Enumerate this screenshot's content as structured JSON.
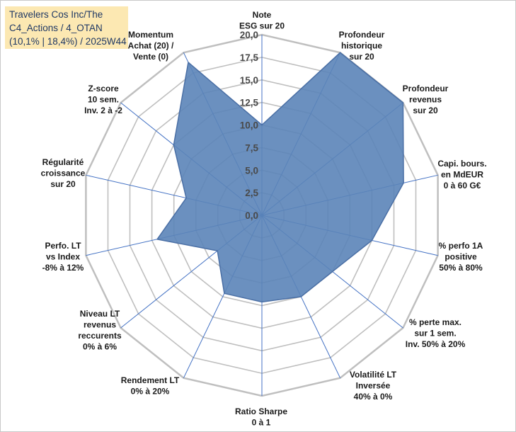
{
  "title": {
    "line1": "Travelers Cos Inc/The",
    "line2": "C4_Actions / 4_OTAN",
    "line3": "(10,1% | 18,4%) / 2025W44"
  },
  "colors": {
    "fill": "#5b84b8",
    "stroke": "#4a6fa5",
    "spoke": "#4472c4",
    "grid": "#bfbfbf"
  },
  "chart_data": {
    "type": "radar",
    "rmin": 0,
    "rmax": 20,
    "tick_labels": [
      "0,0",
      "2,5",
      "5,0",
      "7,5",
      "10,0",
      "12,5",
      "15,0",
      "17,5",
      "20,0"
    ],
    "axes": [
      {
        "label": [
          "Note",
          "ESG sur 20"
        ],
        "value": 10.0
      },
      {
        "label": [
          "Profondeur",
          "historique",
          "sur 20"
        ],
        "value": 20.0
      },
      {
        "label": [
          "Profondeur",
          "revenus",
          "sur 20"
        ],
        "value": 20.0
      },
      {
        "label": [
          "Capi. bours.",
          "en MdEUR",
          "0 à 60 G€"
        ],
        "value": 16.1
      },
      {
        "label": [
          "% perfo 1A",
          "positive",
          "50% à 80%"
        ],
        "value": 12.5
      },
      {
        "label": [
          "% perte max.",
          "sur 1 sem.",
          "Inv. 50% à 20%"
        ],
        "value": 10.0
      },
      {
        "label": [
          "Volatilité LT",
          "Inversée",
          "40% à 0%"
        ],
        "value": 10.0
      },
      {
        "label": [
          "Ratio Sharpe",
          "0 à 1"
        ],
        "value": 9.6
      },
      {
        "label": [
          "Rendement LT",
          "0% à 20%"
        ],
        "value": 9.6
      },
      {
        "label": [
          "Niveau LT",
          "revenus",
          "reccurents",
          "0% à 6%"
        ],
        "value": 6.3
      },
      {
        "label": [
          "Perfo. LT",
          "vs Index",
          "-8% à 12%"
        ],
        "value": 11.9
      },
      {
        "label": [
          "Régularité",
          "croissance",
          "sur 20"
        ],
        "value": 8.6
      },
      {
        "label": [
          "Z-score",
          "10 sem.",
          "Inv. 2 à -2"
        ],
        "value": 12.5
      },
      {
        "label": [
          "Momentum",
          "Achat (20) /",
          "Vente (0)"
        ],
        "value": 18.8
      }
    ]
  }
}
